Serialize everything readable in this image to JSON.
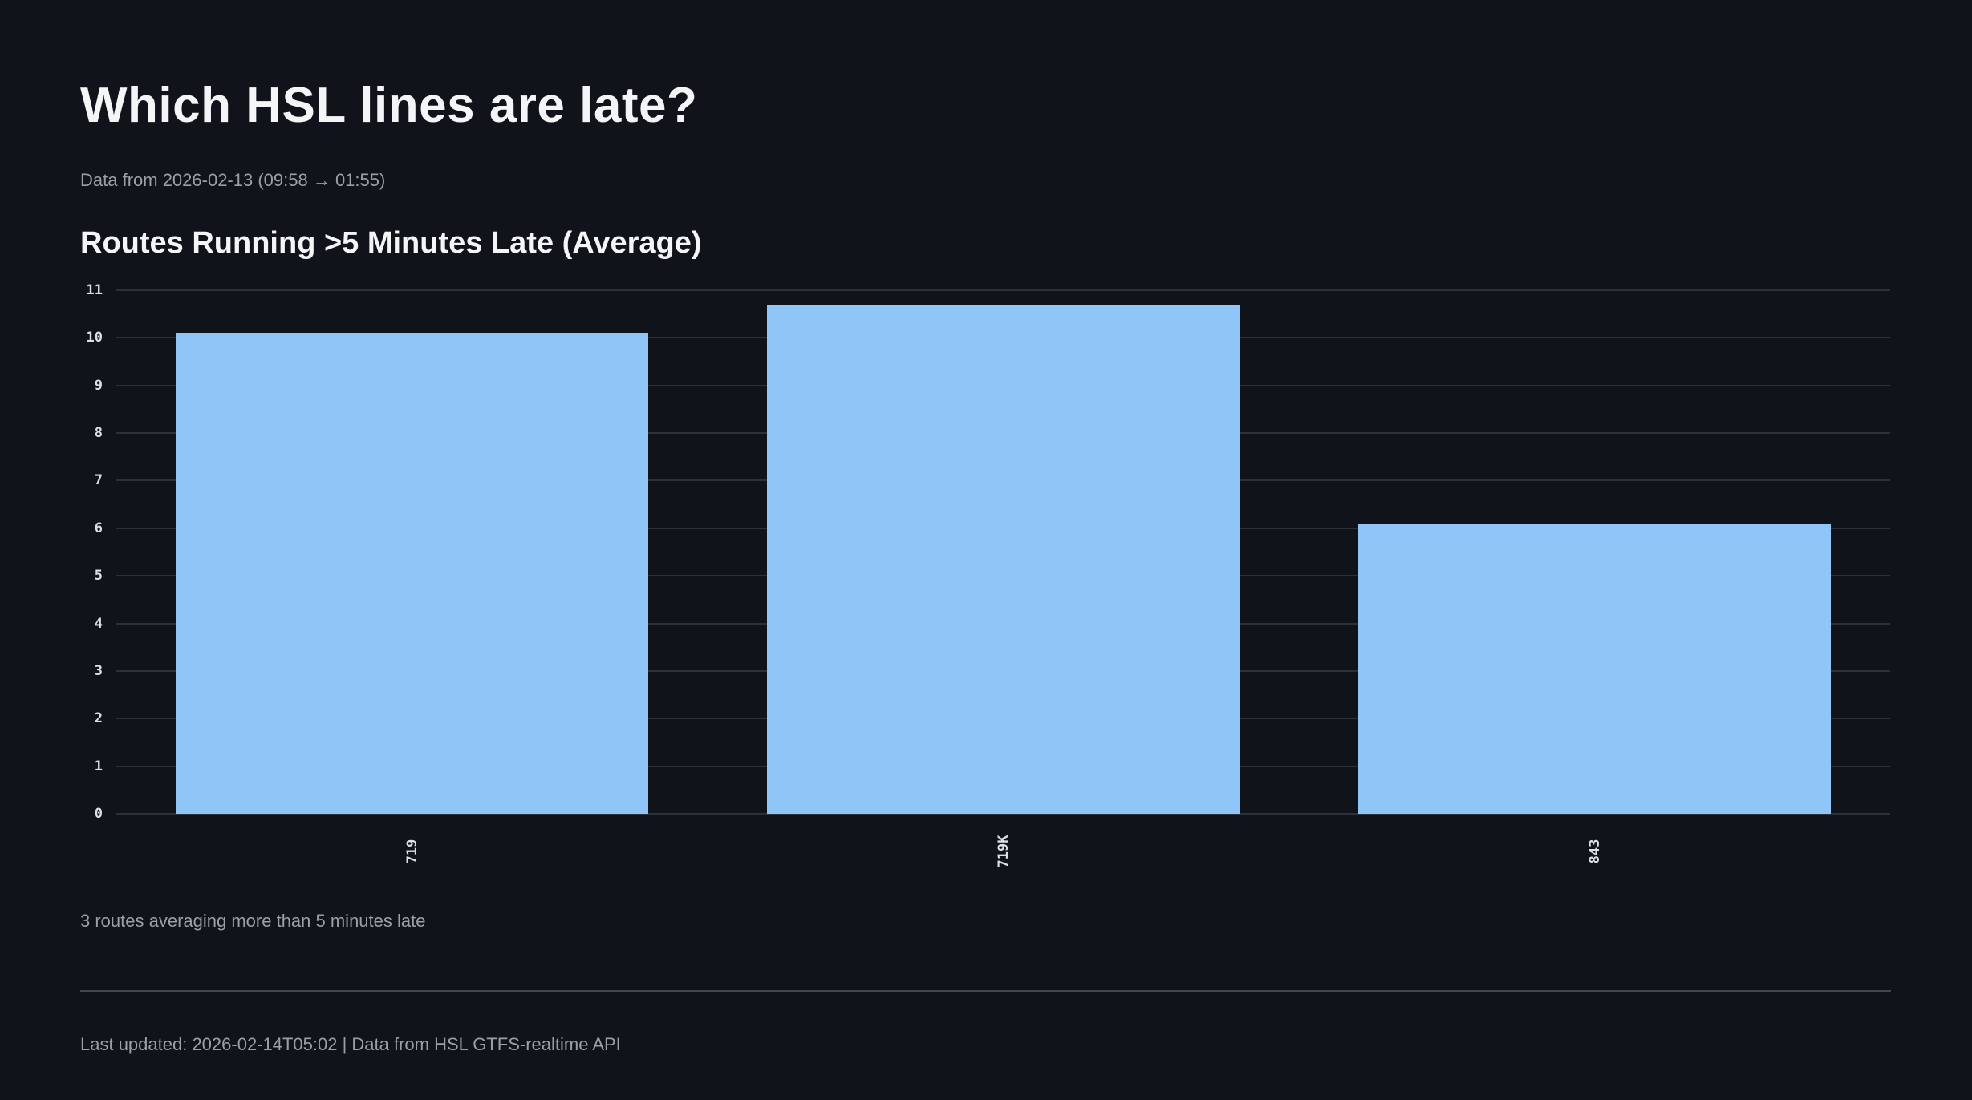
{
  "page": {
    "title": "Which HSL lines are late?",
    "subtitle": "Data from 2026-02-13 (09:58 → 01:55)",
    "note": "3 routes averaging more than 5 minutes late",
    "footer": "Last updated: 2026-02-14T05:02 | Data from HSL GTFS-realtime API"
  },
  "colors": {
    "background": "#10131a",
    "heading": "#f4f5f7",
    "muted_text": "#9b9fa6",
    "tick_label": "#dcdfe3",
    "bar": "#90c6f7",
    "gridline": "#2d3038",
    "divider": "#43464d"
  },
  "chart_data": {
    "type": "bar",
    "title": "Routes Running >5 Minutes Late (Average)",
    "categories": [
      "719",
      "719K",
      "843"
    ],
    "values": [
      10.1,
      10.7,
      6.1
    ],
    "xlabel": "",
    "ylabel": "",
    "ylim": [
      0,
      11
    ],
    "yticks": [
      0,
      1,
      2,
      3,
      4,
      5,
      6,
      7,
      8,
      9,
      10,
      11
    ],
    "x_tick_rotation": 90,
    "grid": true,
    "legend": false,
    "bar_relative_width": 0.8
  }
}
